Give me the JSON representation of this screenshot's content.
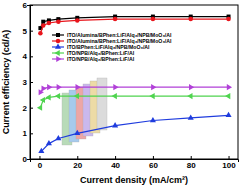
{
  "chart_data": {
    "type": "line",
    "x_label": "Current density (mA/cm²)",
    "y_label": "Current efficiency (cd/A)",
    "xlim": [
      -5,
      105
    ],
    "xticks": [
      0,
      20,
      40,
      60,
      80,
      100
    ],
    "ylim": [
      0,
      6
    ],
    "yticks": [
      0,
      1,
      2,
      3,
      4,
      5,
      6
    ],
    "legend": "top",
    "series": [
      {
        "name": "ITO/Alumina/BPhen:LiF/Alq₃/NPB/MoO₃/Al",
        "color": "#000000",
        "marker": "square",
        "x": [
          0.5,
          2,
          5,
          10,
          20,
          40,
          60,
          80,
          100
        ],
        "values": [
          5.1,
          5.35,
          5.4,
          5.45,
          5.5,
          5.55,
          5.55,
          5.55,
          5.55
        ]
      },
      {
        "name": "ITO/Alumina/BPhen:LiF/Alq₃/NPB/MoO₃/Al",
        "color": "#e8141b",
        "marker": "circle",
        "x": [
          0.5,
          2,
          5,
          10,
          20,
          40,
          60,
          80,
          100
        ],
        "values": [
          4.9,
          5.2,
          5.3,
          5.35,
          5.4,
          5.45,
          5.45,
          5.45,
          5.45
        ]
      },
      {
        "name": "ITO/BPhen:LiF/Alq₃/NPB/MoO₃/Al",
        "color": "#1f3cde",
        "marker": "triangle",
        "x": [
          1,
          5,
          10,
          20,
          40,
          60,
          80,
          100
        ],
        "values": [
          0.3,
          0.6,
          0.8,
          1.0,
          1.3,
          1.5,
          1.6,
          1.7
        ]
      },
      {
        "name": "ITO/NPB/Alq₃/BPhen:LiF/Al",
        "color": "#4fd44f",
        "marker": "triangle-left",
        "x": [
          0.5,
          2,
          5,
          10,
          20,
          40,
          60,
          80,
          100
        ],
        "values": [
          2.0,
          2.3,
          2.4,
          2.45,
          2.45,
          2.45,
          2.45,
          2.45,
          2.45
        ]
      },
      {
        "name": "ITO/NPB/Alq₃/BPhen:LiF/Al",
        "color": "#b140d8",
        "marker": "triangle-right",
        "x": [
          0.5,
          2,
          5,
          10,
          20,
          40,
          60,
          80,
          100
        ],
        "values": [
          2.6,
          2.75,
          2.8,
          2.8,
          2.8,
          2.8,
          2.8,
          2.8,
          2.8
        ]
      }
    ]
  }
}
